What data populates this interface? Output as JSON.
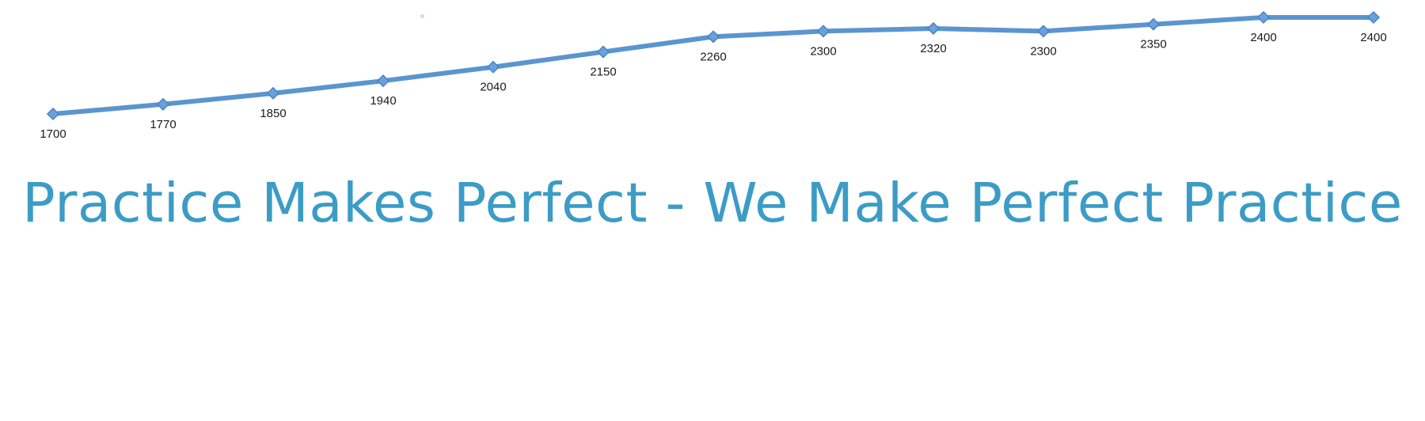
{
  "tagline": "Practice Makes Perfect - We Make Perfect Practice",
  "colors": {
    "line": "#5b95cf",
    "point_fill": "#6aa1dd",
    "point_stroke": "#4a83c2",
    "tagline": "#3b9cc6"
  },
  "chart_data": {
    "type": "line",
    "title": "",
    "xlabel": "",
    "ylabel": "",
    "grid": false,
    "legend": "none",
    "ylim": [
      1700,
      2400
    ],
    "series": [
      {
        "values": [
          1700,
          1770,
          1850,
          1940,
          2040,
          2150,
          2260,
          2300,
          2320,
          2300,
          2350,
          2400,
          2400
        ],
        "labels": [
          "1700",
          "1770",
          "1850",
          "1940",
          "2040",
          "2150",
          "2260",
          "2300",
          "2320",
          "2300",
          "2350",
          "2400",
          "2400"
        ]
      }
    ]
  }
}
